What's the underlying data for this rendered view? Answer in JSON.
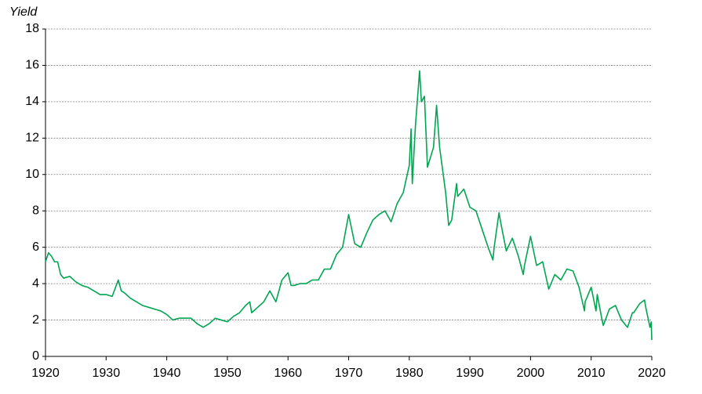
{
  "chart_data": {
    "type": "line",
    "y_label": "Yield",
    "x": [
      1920,
      1920.5,
      1921,
      1921.5,
      1922,
      1922.5,
      1923,
      1924,
      1925,
      1926,
      1927,
      1928,
      1929,
      1930,
      1931,
      1932,
      1932.5,
      1933,
      1934,
      1935,
      1936,
      1937,
      1938,
      1939,
      1940,
      1941,
      1942,
      1943,
      1944,
      1945,
      1946,
      1947,
      1948,
      1949,
      1950,
      1951,
      1952,
      1953,
      1953.7,
      1954,
      1955,
      1956,
      1957,
      1958,
      1959,
      1960,
      1960.5,
      1961,
      1962,
      1963,
      1964,
      1965,
      1966,
      1967,
      1968,
      1969,
      1970,
      1971,
      1972,
      1973,
      1974,
      1975,
      1976,
      1977,
      1978,
      1979,
      1980,
      1980.3,
      1980.5,
      1981,
      1981.7,
      1982,
      1982.5,
      1983,
      1984,
      1984.5,
      1985,
      1986,
      1986.5,
      1987,
      1987.8,
      1988,
      1989,
      1990,
      1991,
      1992,
      1993,
      1993.8,
      1994,
      1994.8,
      1995,
      1996,
      1997,
      1998,
      1998.8,
      1999,
      2000,
      2001,
      2002,
      2003,
      2004,
      2005,
      2006,
      2007,
      2008,
      2008.9,
      2009,
      2010,
      2010.8,
      2011,
      2011.8,
      2012,
      2013,
      2014,
      2015,
      2016,
      2016.8,
      2017,
      2018,
      2018.8,
      2019,
      2019.7,
      2019.9,
      2020
    ],
    "series": [
      {
        "name": "Yield",
        "color": "#00a651",
        "values": [
          5.2,
          5.7,
          5.5,
          5.2,
          5.2,
          4.5,
          4.3,
          4.4,
          4.1,
          3.9,
          3.8,
          3.6,
          3.4,
          3.4,
          3.3,
          4.2,
          3.6,
          3.5,
          3.2,
          3.0,
          2.8,
          2.7,
          2.6,
          2.5,
          2.3,
          2.0,
          2.1,
          2.1,
          2.1,
          1.8,
          1.6,
          1.8,
          2.1,
          2.0,
          1.9,
          2.2,
          2.4,
          2.8,
          3.0,
          2.4,
          2.7,
          3.0,
          3.6,
          3.0,
          4.2,
          4.6,
          3.9,
          3.9,
          4.0,
          4.0,
          4.2,
          4.2,
          4.8,
          4.8,
          5.6,
          6.0,
          7.8,
          6.2,
          6.0,
          6.8,
          7.5,
          7.8,
          8.0,
          7.4,
          8.4,
          9.0,
          10.5,
          12.5,
          9.5,
          12.6,
          15.7,
          14.0,
          14.3,
          10.4,
          11.5,
          13.8,
          11.5,
          9.0,
          7.2,
          7.5,
          9.5,
          8.8,
          9.2,
          8.2,
          8.0,
          7.0,
          6.0,
          5.3,
          6.0,
          7.9,
          7.5,
          5.8,
          6.5,
          5.5,
          4.5,
          5.0,
          6.6,
          5.0,
          5.2,
          3.7,
          4.5,
          4.2,
          4.8,
          4.7,
          3.8,
          2.5,
          3.0,
          3.8,
          2.5,
          3.4,
          2.0,
          1.7,
          2.6,
          2.8,
          2.0,
          1.6,
          2.4,
          2.4,
          2.9,
          3.1,
          2.7,
          1.6,
          1.9,
          0.9
        ]
      }
    ],
    "xlim": [
      1920,
      2020
    ],
    "xticks": [
      1920,
      1930,
      1940,
      1950,
      1960,
      1970,
      1980,
      1990,
      2000,
      2010,
      2020
    ],
    "ylim": [
      0,
      18
    ],
    "yticks": [
      0,
      2,
      4,
      6,
      8,
      10,
      12,
      14,
      16,
      18
    ],
    "grid": true
  }
}
